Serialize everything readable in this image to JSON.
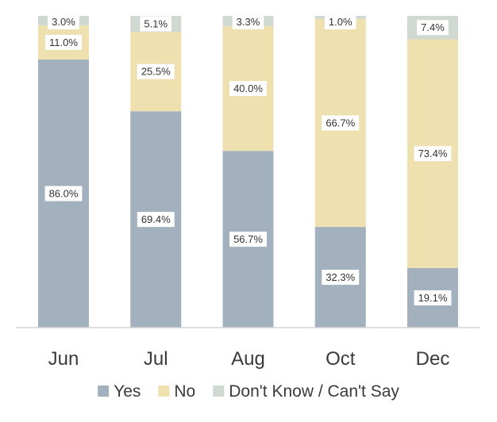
{
  "chart_data": {
    "type": "bar",
    "stacked": true,
    "categories": [
      "Jun",
      "Jul",
      "Aug",
      "Oct",
      "Dec"
    ],
    "series": [
      {
        "name": "Yes",
        "color": "#a3b1bf",
        "values": [
          86.0,
          69.4,
          56.7,
          32.3,
          19.1
        ],
        "labels": [
          "86.0%",
          "69.4%",
          "56.7%",
          "32.3%",
          "19.1%"
        ]
      },
      {
        "name": "No",
        "color": "#efe0b0",
        "values": [
          11.0,
          25.5,
          40.0,
          66.7,
          73.4
        ],
        "labels": [
          "11.0%",
          "25.5%",
          "40.0%",
          "66.7%",
          "73.4%"
        ]
      },
      {
        "name": "Don't Know / Can't Say",
        "color": "#cfd9d1",
        "values": [
          3.0,
          5.1,
          3.3,
          1.0,
          7.4
        ],
        "labels": [
          "3.0%",
          "5.1%",
          "3.3%",
          "1.0%",
          "7.4%"
        ]
      }
    ],
    "ylim": [
      0,
      100
    ],
    "grid": false,
    "legend_position": "bottom",
    "axis_color": "#d4d4d4"
  }
}
